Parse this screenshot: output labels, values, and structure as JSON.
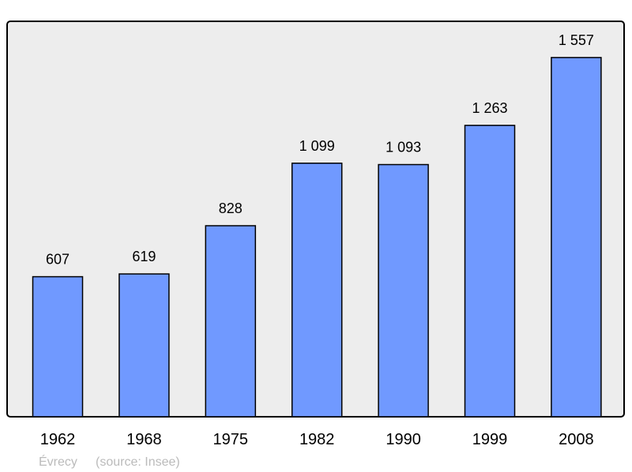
{
  "chart_data": {
    "type": "bar",
    "categories": [
      "1962",
      "1968",
      "1975",
      "1982",
      "1990",
      "1999",
      "2008"
    ],
    "values": [
      607,
      619,
      828,
      1099,
      1093,
      1263,
      1557
    ],
    "value_labels": [
      "607",
      "619",
      "828",
      "1 099",
      "1 093",
      "1 263",
      "1 557"
    ],
    "title": "",
    "xlabel": "",
    "ylabel": "",
    "ylim": [
      0,
      1714
    ],
    "grid": false,
    "colors": {
      "bar": "#7099ff",
      "plot_background": "#ededed",
      "frame": "#000000"
    }
  },
  "footer": {
    "place": "Évrecy",
    "source": "(source: Insee)"
  }
}
